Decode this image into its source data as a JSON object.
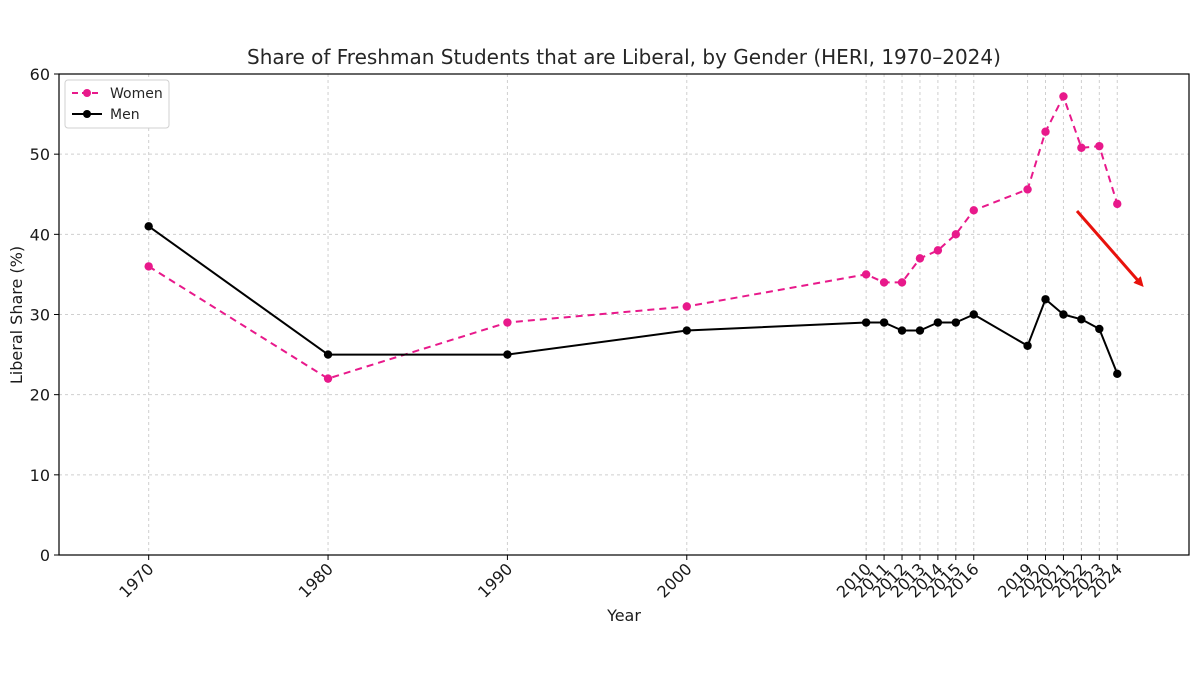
{
  "chart_data": {
    "type": "line",
    "title": "Share of Freshman Students that are Liberal, by Gender (HERI, 1970–2024)",
    "xlabel": "Year",
    "ylabel": "Liberal Share (%)",
    "ylim": [
      0,
      60
    ],
    "yticks": [
      0,
      10,
      20,
      30,
      40,
      50,
      60
    ],
    "grid": true,
    "legend_position": "top-left",
    "x": [
      1970,
      1980,
      1990,
      2000,
      2010,
      2011,
      2012,
      2013,
      2014,
      2015,
      2016,
      2019,
      2020,
      2021,
      2022,
      2023,
      2024
    ],
    "series": [
      {
        "name": "Women",
        "color": "#e8198b",
        "style": "dashed",
        "values": [
          36,
          22,
          29,
          31,
          35,
          34,
          34,
          37,
          38,
          40,
          43,
          45.6,
          52.8,
          57.2,
          50.8,
          51.0,
          43.8
        ]
      },
      {
        "name": "Men",
        "color": "#000000",
        "style": "solid",
        "values": [
          41,
          25,
          25,
          28,
          29,
          29,
          28,
          28,
          29,
          29,
          30,
          26.1,
          31.9,
          30.0,
          29.4,
          28.2,
          22.6
        ]
      }
    ],
    "annotation": {
      "type": "arrow",
      "color": "#e8120c",
      "description": "downward trend arrow"
    }
  }
}
